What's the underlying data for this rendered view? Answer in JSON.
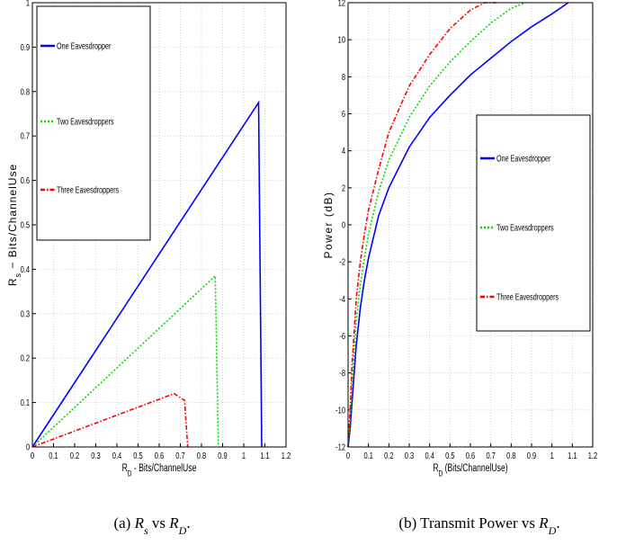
{
  "chart_data": [
    {
      "type": "line",
      "xlabel": "R_D - Bits/ChannelUse",
      "ylabel": "R_s - Bits/ChannelUse",
      "xlim": [
        0,
        1.2
      ],
      "ylim": [
        0,
        1
      ],
      "x_ticks": [
        "0",
        "0.1",
        "0.2",
        "0.3",
        "0.4",
        "0.5",
        "0.6",
        "0.7",
        "0.8",
        "0.9",
        "1",
        "1.1",
        "1.2"
      ],
      "y_ticks": [
        "0",
        "0.1",
        "0.2",
        "0.3",
        "0.4",
        "0.5",
        "0.6",
        "0.7",
        "0.8",
        "0.9",
        "1"
      ],
      "grid": true,
      "legend_placement": "top-left",
      "caption": "(a) R_s vs R_D.",
      "series": [
        {
          "name": "One Eavesdropper",
          "color": "#0000ff",
          "style": "solid",
          "points": [
            [
              0,
              0
            ],
            [
              1.07,
              0.775
            ],
            [
              1.085,
              0
            ]
          ]
        },
        {
          "name": "Two Eavesdroppers",
          "color": "#00dd00",
          "style": "dotted",
          "points": [
            [
              0,
              0
            ],
            [
              0.865,
              0.385
            ],
            [
              0.88,
              0
            ]
          ]
        },
        {
          "name": "Three Eavesdroppers",
          "color": "#ff0000",
          "style": "dashdot",
          "points": [
            [
              0,
              0
            ],
            [
              0.67,
              0.12
            ],
            [
              0.72,
              0.105
            ],
            [
              0.735,
              0
            ]
          ]
        }
      ]
    },
    {
      "type": "line",
      "xlabel": "R_D (Bits/ChannelUse)",
      "ylabel": "Power (dB)",
      "xlim": [
        0,
        1.2
      ],
      "ylim": [
        -12,
        12
      ],
      "x_ticks": [
        "0",
        "0.1",
        "0.2",
        "0.3",
        "0.4",
        "0.5",
        "0.6",
        "0.7",
        "0.8",
        "0.9",
        "1",
        "1.1",
        "1.2"
      ],
      "y_ticks": [
        "-12",
        "-10",
        "-8",
        "-6",
        "-4",
        "-2",
        "0",
        "2",
        "4",
        "6",
        "8",
        "10",
        "12"
      ],
      "grid": true,
      "legend_placement": "right",
      "caption": "(b) Transmit Power vs R_D.",
      "series": [
        {
          "name": "One Eavesdropper",
          "color": "#0000ff",
          "style": "solid",
          "points": [
            [
              0.0,
              -12
            ],
            [
              0.01,
              -11
            ],
            [
              0.02,
              -9.5
            ],
            [
              0.04,
              -6.5
            ],
            [
              0.06,
              -4.5
            ],
            [
              0.08,
              -3
            ],
            [
              0.1,
              -1.8
            ],
            [
              0.15,
              0.5
            ],
            [
              0.2,
              2
            ],
            [
              0.3,
              4.2
            ],
            [
              0.4,
              5.8
            ],
            [
              0.5,
              7
            ],
            [
              0.6,
              8.1
            ],
            [
              0.7,
              9
            ],
            [
              0.8,
              9.9
            ],
            [
              0.9,
              10.7
            ],
            [
              1.0,
              11.4
            ],
            [
              1.08,
              12
            ]
          ]
        },
        {
          "name": "Two Eavesdroppers",
          "color": "#00dd00",
          "style": "dotted",
          "points": [
            [
              0.0,
              -12
            ],
            [
              0.01,
              -10.5
            ],
            [
              0.02,
              -8.5
            ],
            [
              0.04,
              -5.2
            ],
            [
              0.06,
              -3.2
            ],
            [
              0.08,
              -1.8
            ],
            [
              0.1,
              -0.5
            ],
            [
              0.15,
              1.8
            ],
            [
              0.2,
              3.5
            ],
            [
              0.3,
              5.8
            ],
            [
              0.4,
              7.5
            ],
            [
              0.5,
              8.8
            ],
            [
              0.6,
              9.9
            ],
            [
              0.7,
              10.9
            ],
            [
              0.8,
              11.7
            ],
            [
              0.87,
              12
            ]
          ]
        },
        {
          "name": "Three Eavesdroppers",
          "color": "#ff0000",
          "style": "dashdot",
          "points": [
            [
              0.0,
              -12
            ],
            [
              0.01,
              -10
            ],
            [
              0.02,
              -7.5
            ],
            [
              0.04,
              -4
            ],
            [
              0.06,
              -2
            ],
            [
              0.08,
              -0.5
            ],
            [
              0.1,
              0.8
            ],
            [
              0.15,
              3
            ],
            [
              0.2,
              5
            ],
            [
              0.3,
              7.5
            ],
            [
              0.4,
              9.2
            ],
            [
              0.5,
              10.6
            ],
            [
              0.6,
              11.6
            ],
            [
              0.67,
              12
            ],
            [
              0.73,
              12
            ]
          ]
        }
      ]
    }
  ]
}
